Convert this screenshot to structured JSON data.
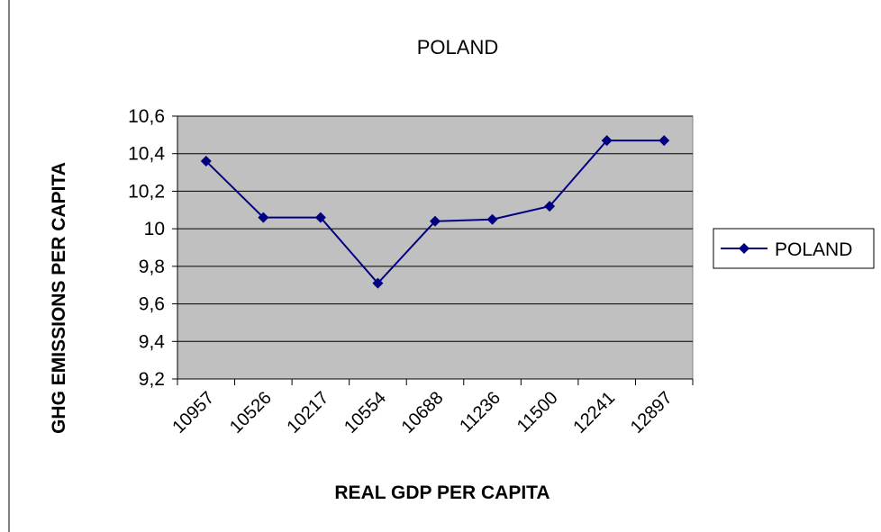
{
  "chart_data": {
    "type": "line",
    "title": "POLAND",
    "xlabel": "REAL GDP PER CAPITA",
    "ylabel": "GHG EMISSIONS PER CAPITA",
    "categories": [
      "10957",
      "10526",
      "10217",
      "10554",
      "10688",
      "11236",
      "11500",
      "12241",
      "12897"
    ],
    "series": [
      {
        "name": "POLAND",
        "values": [
          10.36,
          10.06,
          10.06,
          9.71,
          10.04,
          10.05,
          10.12,
          10.47,
          10.47
        ],
        "color": "#000080",
        "marker": "diamond"
      }
    ],
    "ylim": [
      9.2,
      10.6
    ],
    "yticks": [
      "9,2",
      "9,4",
      "9,6",
      "9,8",
      "10",
      "10,2",
      "10,4",
      "10,6"
    ],
    "grid": true,
    "legend": "right",
    "plot_background": "#c0c0c0"
  }
}
